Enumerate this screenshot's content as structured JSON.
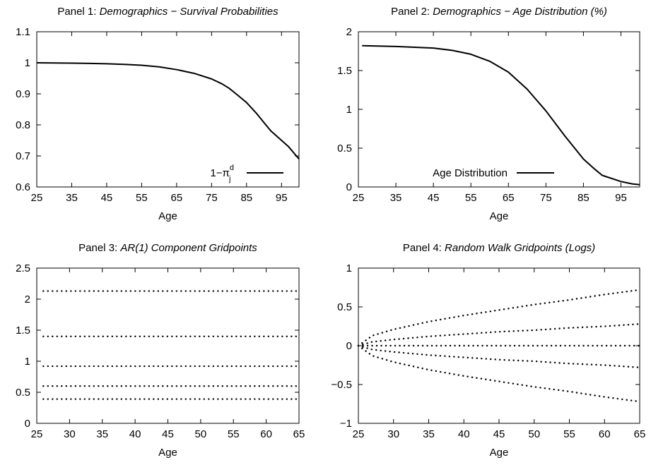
{
  "chart_data": [
    {
      "type": "line",
      "title_prefix": "Panel 1: ",
      "title_italic": "Demographics − Survival Probabilities",
      "xlabel": "Age",
      "ylabel": "",
      "xlim": [
        25,
        100
      ],
      "ylim": [
        0.6,
        1.1
      ],
      "xticks": [
        25,
        35,
        45,
        55,
        65,
        75,
        85,
        95
      ],
      "yticks": [
        0.6,
        0.7,
        0.8,
        0.9,
        1,
        1.1
      ],
      "legend_position": "bottom-right",
      "series": [
        {
          "name": "1−π^d_j",
          "legend_main": "1−π",
          "legend_sup": "d",
          "legend_sub": "j",
          "style": "solid",
          "x": [
            25,
            35,
            45,
            50,
            55,
            60,
            65,
            70,
            75,
            78,
            80,
            82,
            85,
            88,
            90,
            92,
            95,
            97,
            100
          ],
          "y": [
            1.0,
            0.999,
            0.997,
            0.995,
            0.992,
            0.987,
            0.978,
            0.966,
            0.948,
            0.932,
            0.918,
            0.9,
            0.872,
            0.835,
            0.807,
            0.78,
            0.75,
            0.73,
            0.69
          ]
        }
      ]
    },
    {
      "type": "line",
      "title_prefix": "Panel 2: ",
      "title_italic": "Demographics − Age Distribution (%)",
      "xlabel": "Age",
      "ylabel": "",
      "xlim": [
        25,
        100
      ],
      "ylim": [
        0,
        2
      ],
      "xticks": [
        25,
        35,
        45,
        55,
        65,
        75,
        85,
        95
      ],
      "yticks": [
        0,
        0.5,
        1,
        1.5,
        2
      ],
      "legend_position": "bottom-left",
      "series": [
        {
          "name": "Age Distribution",
          "style": "solid",
          "x": [
            26,
            35,
            45,
            50,
            55,
            60,
            65,
            70,
            75,
            80,
            85,
            88,
            90,
            95,
            98,
            100
          ],
          "y": [
            1.82,
            1.81,
            1.79,
            1.76,
            1.71,
            1.62,
            1.48,
            1.26,
            0.98,
            0.66,
            0.36,
            0.23,
            0.15,
            0.07,
            0.04,
            0.03
          ]
        }
      ]
    },
    {
      "type": "line",
      "title_prefix": "Panel 3: ",
      "title_italic": "AR(1) Component Gridpoints",
      "xlabel": "Age",
      "ylabel": "",
      "xlim": [
        25,
        65
      ],
      "ylim": [
        0,
        2.5
      ],
      "xticks": [
        25,
        30,
        35,
        40,
        45,
        50,
        55,
        60,
        65
      ],
      "yticks": [
        0,
        0.5,
        1,
        1.5,
        2,
        2.5
      ],
      "series": [
        {
          "style": "dotted",
          "x": [
            26,
            65
          ],
          "y": [
            2.13,
            2.13
          ]
        },
        {
          "style": "dotted",
          "x": [
            26,
            65
          ],
          "y": [
            1.4,
            1.4
          ]
        },
        {
          "style": "dotted",
          "x": [
            26,
            65
          ],
          "y": [
            0.92,
            0.92
          ]
        },
        {
          "style": "dotted",
          "x": [
            26,
            65
          ],
          "y": [
            0.6,
            0.6
          ]
        },
        {
          "style": "dotted",
          "x": [
            26,
            65
          ],
          "y": [
            0.39,
            0.39
          ]
        }
      ]
    },
    {
      "type": "line",
      "title_prefix": "Panel 4: ",
      "title_italic": "Random Walk Gridpoints (Logs)",
      "xlabel": "Age",
      "ylabel": "",
      "xlim": [
        25,
        65
      ],
      "ylim": [
        -1,
        1
      ],
      "xticks": [
        25,
        30,
        35,
        40,
        45,
        50,
        55,
        60,
        65
      ],
      "yticks": [
        -1,
        -0.5,
        0,
        0.5,
        1
      ],
      "series": [
        {
          "style": "dotted",
          "x": [
            25,
            27,
            30,
            35,
            40,
            45,
            50,
            55,
            60,
            65
          ],
          "y": [
            0,
            0.13,
            0.21,
            0.31,
            0.39,
            0.46,
            0.53,
            0.59,
            0.66,
            0.72
          ]
        },
        {
          "style": "dotted",
          "x": [
            25,
            27,
            30,
            35,
            40,
            45,
            50,
            55,
            60,
            65
          ],
          "y": [
            0,
            0.05,
            0.08,
            0.12,
            0.15,
            0.18,
            0.2,
            0.23,
            0.25,
            0.28
          ]
        },
        {
          "style": "dotted",
          "x": [
            25,
            65
          ],
          "y": [
            0,
            0
          ]
        },
        {
          "style": "dotted",
          "x": [
            25,
            27,
            30,
            35,
            40,
            45,
            50,
            55,
            60,
            65
          ],
          "y": [
            0,
            -0.05,
            -0.08,
            -0.12,
            -0.15,
            -0.18,
            -0.2,
            -0.23,
            -0.25,
            -0.28
          ]
        },
        {
          "style": "dotted",
          "x": [
            25,
            27,
            30,
            35,
            40,
            45,
            50,
            55,
            60,
            65
          ],
          "y": [
            0,
            -0.13,
            -0.21,
            -0.31,
            -0.39,
            -0.46,
            -0.53,
            -0.59,
            -0.66,
            -0.72
          ]
        }
      ]
    }
  ]
}
